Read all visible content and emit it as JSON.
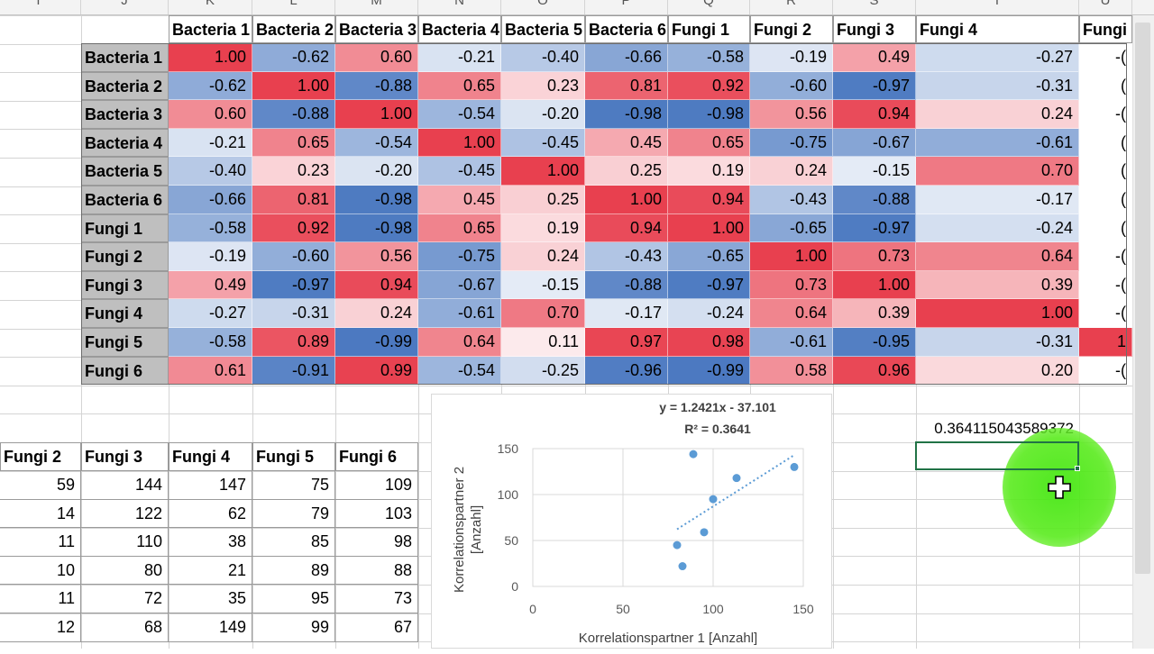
{
  "spreadsheet": {
    "columns": [
      "I",
      "J",
      "K",
      "L",
      "M",
      "N",
      "O",
      "P",
      "Q",
      "R",
      "S",
      "T",
      "U"
    ],
    "corr_headers": [
      "Bacteria 1",
      "Bacteria 2",
      "Bacteria 3",
      "Bacteria 4",
      "Bacteria 5",
      "Bacteria 6",
      "Fungi 1",
      "Fungi 2",
      "Fungi 3",
      "Fungi 4",
      "Fungi"
    ],
    "corr_rows": [
      {
        "label": "Bacteria 1",
        "values": [
          "1.00",
          "-0.62",
          "0.60",
          "-0.21",
          "-0.40",
          "-0.66",
          "-0.58",
          "-0.19",
          "0.49",
          "-0.27",
          "-("
        ]
      },
      {
        "label": "Bacteria 2",
        "values": [
          "-0.62",
          "1.00",
          "-0.88",
          "0.65",
          "0.23",
          "0.81",
          "0.92",
          "-0.60",
          "-0.97",
          "-0.31",
          "("
        ]
      },
      {
        "label": "Bacteria 3",
        "values": [
          "0.60",
          "-0.88",
          "1.00",
          "-0.54",
          "-0.20",
          "-0.98",
          "-0.98",
          "0.56",
          "0.94",
          "0.24",
          "-("
        ]
      },
      {
        "label": "Bacteria 4",
        "values": [
          "-0.21",
          "0.65",
          "-0.54",
          "1.00",
          "-0.45",
          "0.45",
          "0.65",
          "-0.75",
          "-0.67",
          "-0.61",
          "("
        ]
      },
      {
        "label": "Bacteria 5",
        "values": [
          "-0.40",
          "0.23",
          "-0.20",
          "-0.45",
          "1.00",
          "0.25",
          "0.19",
          "0.24",
          "-0.15",
          "0.70",
          "("
        ]
      },
      {
        "label": "Bacteria 6",
        "values": [
          "-0.66",
          "0.81",
          "-0.98",
          "0.45",
          "0.25",
          "1.00",
          "0.94",
          "-0.43",
          "-0.88",
          "-0.17",
          "("
        ]
      },
      {
        "label": "Fungi 1",
        "values": [
          "-0.58",
          "0.92",
          "-0.98",
          "0.65",
          "0.19",
          "0.94",
          "1.00",
          "-0.65",
          "-0.97",
          "-0.24",
          "("
        ]
      },
      {
        "label": "Fungi 2",
        "values": [
          "-0.19",
          "-0.60",
          "0.56",
          "-0.75",
          "0.24",
          "-0.43",
          "-0.65",
          "1.00",
          "0.73",
          "0.64",
          "-("
        ]
      },
      {
        "label": "Fungi 3",
        "values": [
          "0.49",
          "-0.97",
          "0.94",
          "-0.67",
          "-0.15",
          "-0.88",
          "-0.97",
          "0.73",
          "1.00",
          "0.39",
          "-("
        ]
      },
      {
        "label": "Fungi 4",
        "values": [
          "-0.27",
          "-0.31",
          "0.24",
          "-0.61",
          "0.70",
          "-0.17",
          "-0.24",
          "0.64",
          "0.39",
          "1.00",
          "-("
        ]
      },
      {
        "label": "Fungi 5",
        "values": [
          "-0.58",
          "0.89",
          "-0.99",
          "0.64",
          "0.11",
          "0.97",
          "0.98",
          "-0.61",
          "-0.95",
          "-0.31",
          "1"
        ]
      },
      {
        "label": "Fungi 6",
        "values": [
          "0.61",
          "-0.91",
          "0.99",
          "-0.54",
          "-0.25",
          "-0.96",
          "-0.99",
          "0.58",
          "0.96",
          "0.20",
          "-("
        ]
      }
    ],
    "raw_headers": [
      "Fungi 2",
      "Fungi 3",
      "Fungi 4",
      "Fungi 5",
      "Fungi 6"
    ],
    "raw_rows": [
      [
        "59",
        "144",
        "147",
        "75",
        "109"
      ],
      [
        "14",
        "122",
        "62",
        "79",
        "103"
      ],
      [
        "11",
        "110",
        "38",
        "85",
        "98"
      ],
      [
        "10",
        "80",
        "21",
        "89",
        "88"
      ],
      [
        "11",
        "72",
        "35",
        "95",
        "73"
      ],
      [
        "12",
        "68",
        "149",
        "99",
        "67"
      ]
    ],
    "r2_value": "0.364115043589372",
    "selected_cell_value": ""
  },
  "colors": {
    "positive": "#e8404f",
    "negative": "#4a78c0",
    "neutral": "#ffffff",
    "selection": "#217346"
  },
  "chart_data": {
    "type": "scatter",
    "title": "",
    "trendline_equation": "y = 1.2421x - 37.101",
    "trendline_r2": "R² = 0.3641",
    "xlabel": "Korrelationspartner 1 [Anzahl]",
    "ylabel_line1": "Korrelationspartner 2",
    "ylabel_line2": "[Anzahl]",
    "xlim": [
      0,
      150
    ],
    "ylim": [
      0,
      150
    ],
    "xticks": [
      "0",
      "50",
      "100",
      "150"
    ],
    "yticks": [
      "0",
      "50",
      "100",
      "150"
    ],
    "points": [
      {
        "x": 80,
        "y": 45
      },
      {
        "x": 83,
        "y": 22
      },
      {
        "x": 89,
        "y": 144
      },
      {
        "x": 95,
        "y": 59
      },
      {
        "x": 100,
        "y": 95
      },
      {
        "x": 113,
        "y": 118
      },
      {
        "x": 145,
        "y": 130
      }
    ],
    "trendline": {
      "slope": 1.2421,
      "intercept": -37.101,
      "x_range": [
        80,
        145
      ]
    },
    "point_color": "#5b9bd5",
    "grid": true
  }
}
